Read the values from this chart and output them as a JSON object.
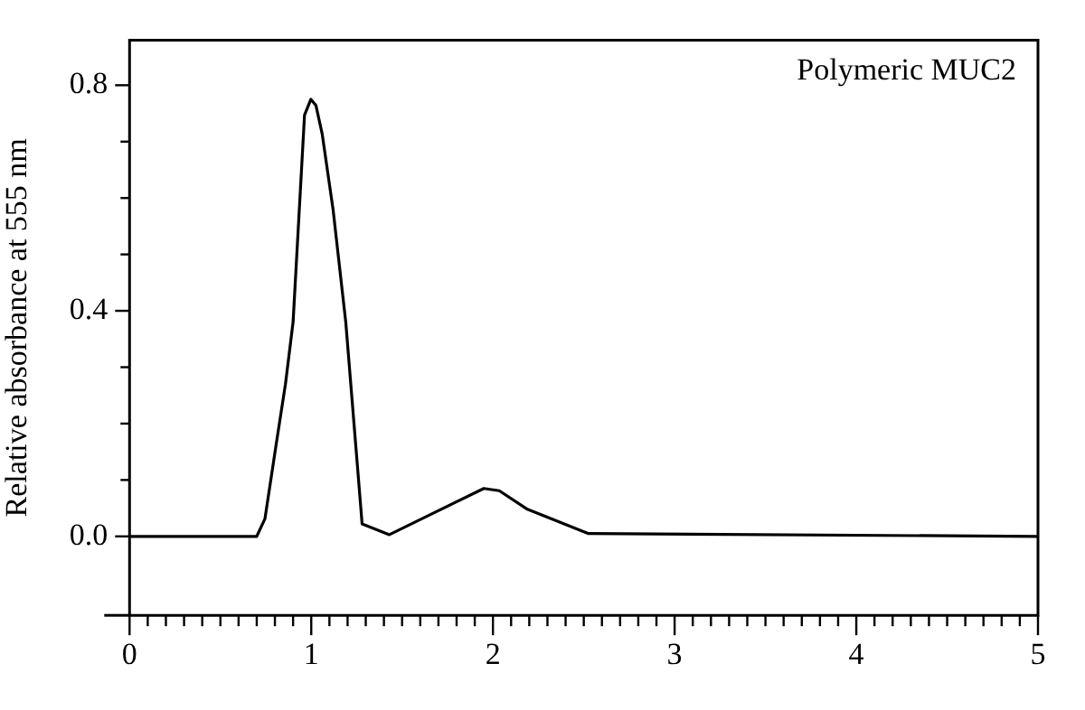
{
  "chart_data": {
    "type": "line",
    "ylabel": "Relative absorbance at 555 nm",
    "annotations": [
      "Polymeric MUC2"
    ],
    "x": [
      0,
      0.7,
      0.745,
      0.805,
      0.858,
      0.9,
      0.963,
      0.998,
      1.026,
      1.06,
      1.12,
      1.19,
      1.28,
      1.43,
      1.95,
      2.035,
      2.19,
      2.526,
      5
    ],
    "series": [
      {
        "color": "#000000",
        "values": [
          0,
          0,
          0.031,
          0.159,
          0.27,
          0.38,
          0.747,
          0.775,
          0.764,
          0.714,
          0.58,
          0.38,
          0.022,
          0.003,
          0.085,
          0.081,
          0.048,
          0.005,
          0
        ]
      }
    ],
    "xlim": [
      0,
      5
    ],
    "xticks": [
      0,
      {
        "value": 0.1,
        "label": null
      },
      {
        "value": 0.2,
        "label": null
      },
      {
        "value": 0.3,
        "label": null
      },
      {
        "value": 0.4,
        "label": null
      },
      {
        "value": 0.5,
        "label": null
      },
      {
        "value": 0.6,
        "label": null
      },
      {
        "value": 0.7,
        "label": null
      },
      {
        "value": 0.8,
        "label": null
      },
      {
        "value": 0.9,
        "label": null
      },
      1,
      {
        "value": 1.1,
        "label": null
      },
      {
        "value": 1.2,
        "label": null
      },
      {
        "value": 1.3,
        "label": null
      },
      {
        "value": 1.4,
        "label": null
      },
      {
        "value": 1.5,
        "label": null
      },
      {
        "value": 1.6,
        "label": null
      },
      {
        "value": 1.7,
        "label": null
      },
      {
        "value": 1.8,
        "label": null
      },
      {
        "value": 1.9,
        "label": null
      },
      2,
      {
        "value": 2.1,
        "label": null
      },
      {
        "value": 2.2,
        "label": null
      },
      {
        "value": 2.3,
        "label": null
      },
      {
        "value": 2.4,
        "label": null
      },
      {
        "value": 2.5,
        "label": null
      },
      {
        "value": 2.6,
        "label": null
      },
      {
        "value": 2.7,
        "label": null
      },
      {
        "value": 2.8,
        "label": null
      },
      {
        "value": 2.9,
        "label": null
      },
      3,
      {
        "value": 3.1,
        "label": null
      },
      {
        "value": 3.2,
        "label": null
      },
      {
        "value": 3.3,
        "label": null
      },
      {
        "value": 3.4,
        "label": null
      },
      {
        "value": 3.5,
        "label": null
      },
      {
        "value": 3.6,
        "label": null
      },
      {
        "value": 3.7,
        "label": null
      },
      {
        "value": 3.8,
        "label": null
      },
      {
        "value": 3.9,
        "label": null
      },
      4,
      {
        "value": 4.1,
        "label": null
      },
      {
        "value": 4.2,
        "label": null
      },
      {
        "value": 4.3,
        "label": null
      },
      {
        "value": 4.4,
        "label": null
      },
      {
        "value": 4.5,
        "label": null
      },
      {
        "value": 4.6,
        "label": null
      },
      {
        "value": 4.7,
        "label": null
      },
      {
        "value": 4.8,
        "label": null
      },
      {
        "value": 4.9,
        "label": null
      },
      5
    ],
    "ylim": [
      -0.14,
      0.88
    ],
    "yticks": [
      {
        "value": 0,
        "label": "0.0"
      },
      {
        "value": 0.1,
        "label": null
      },
      {
        "value": 0.2,
        "label": null
      },
      {
        "value": 0.3,
        "label": null
      },
      {
        "value": 0.4,
        "label": "0.4"
      },
      {
        "value": 0.5,
        "label": null
      },
      {
        "value": 0.6,
        "label": null
      },
      {
        "value": 0.7,
        "label": null
      },
      {
        "value": 0.8,
        "label": "0.8"
      }
    ],
    "grid": false,
    "legend": false,
    "marker": "none",
    "line_style": "solid"
  }
}
